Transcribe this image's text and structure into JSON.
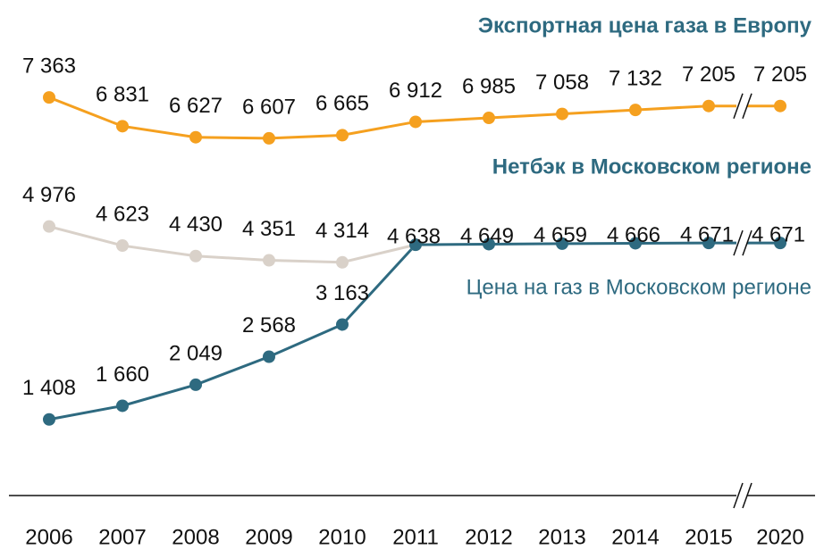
{
  "chart_data": {
    "type": "line",
    "categories": [
      "2006",
      "2007",
      "2008",
      "2009",
      "2010",
      "2011",
      "2012",
      "2013",
      "2014",
      "2015",
      "2020"
    ],
    "ylim": [
      0,
      9000
    ],
    "series": [
      {
        "name": "Экспортная цена газа в Европу",
        "color": "#f5a01f",
        "values": [
          7363,
          6831,
          6627,
          6607,
          6665,
          6912,
          6985,
          7058,
          7132,
          7205,
          7205
        ],
        "value_labels": [
          "7 363",
          "6 831",
          "6 627",
          "6 607",
          "6 665",
          "6 912",
          "6 985",
          "7 058",
          "7 132",
          "7 205",
          "7 205"
        ]
      },
      {
        "name": "Нетбэк в Московском регионе",
        "color": "#d9d1c9",
        "values": [
          4976,
          4623,
          4430,
          4351,
          4314,
          4638,
          null,
          null,
          null,
          null,
          null
        ],
        "value_labels": [
          "4 976",
          "4 623",
          "4 430",
          "4 351",
          "4 314",
          null,
          null,
          null,
          null,
          null,
          null
        ]
      },
      {
        "name": "Цена на газ в Московском регионе",
        "color": "#2e6a80",
        "values": [
          1408,
          1660,
          2049,
          2568,
          3163,
          4638,
          4649,
          4659,
          4666,
          4671,
          4671
        ],
        "value_labels": [
          "1 408",
          "1 660",
          "2 049",
          "2 568",
          "3 163",
          "4 638",
          "4 649",
          "4 659",
          "4 666",
          "4 671",
          "4 671"
        ]
      }
    ]
  }
}
